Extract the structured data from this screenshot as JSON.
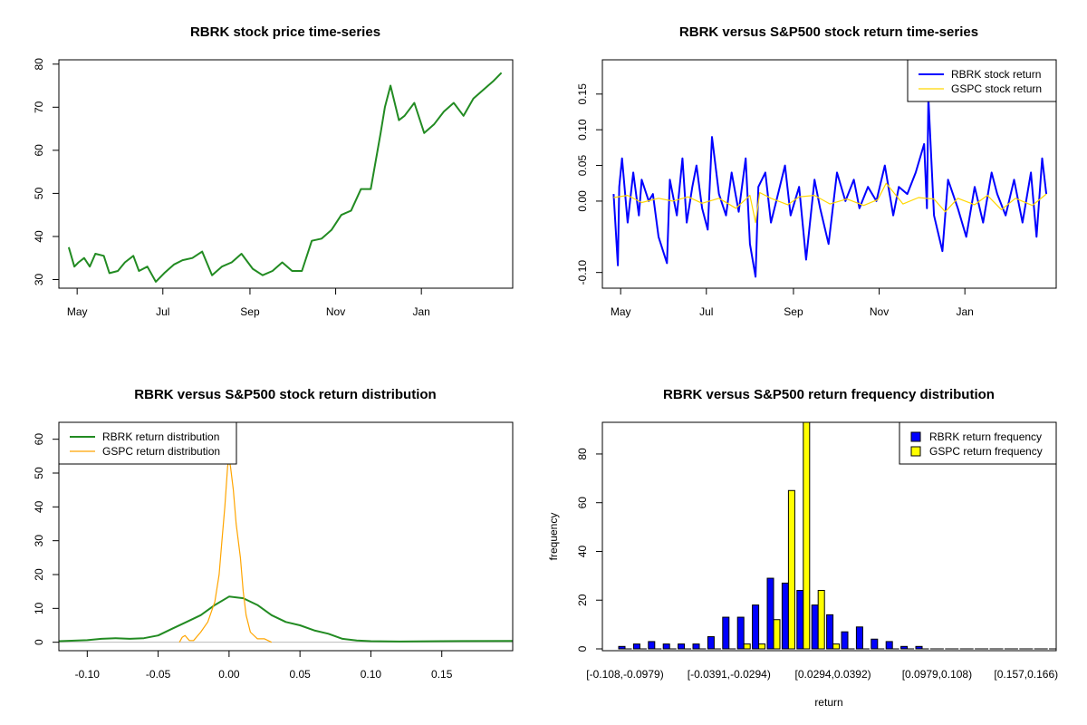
{
  "chart_data": [
    {
      "id": "p1",
      "type": "line",
      "title": "RBRK stock price time-series",
      "xlabel": "",
      "ylabel": "",
      "x_ticks": [
        "May",
        "Jul",
        "Sep",
        "Nov",
        "Jan"
      ],
      "x_tick_dates": [
        "2024-05-01",
        "2024-07-01",
        "2024-09-01",
        "2024-11-01",
        "2025-01-01"
      ],
      "xlim": [
        "2024-04-18",
        "2025-03-07"
      ],
      "ylim": [
        28,
        81
      ],
      "y_ticks": [
        30,
        40,
        50,
        60,
        70,
        80
      ],
      "grid": false,
      "series": [
        {
          "color": "#228B22",
          "x": [
            "2024-04-25",
            "2024-04-29",
            "2024-05-02",
            "2024-05-06",
            "2024-05-10",
            "2024-05-14",
            "2024-05-20",
            "2024-05-24",
            "2024-05-30",
            "2024-06-04",
            "2024-06-10",
            "2024-06-14",
            "2024-06-20",
            "2024-06-26",
            "2024-07-02",
            "2024-07-09",
            "2024-07-15",
            "2024-07-22",
            "2024-07-29",
            "2024-08-05",
            "2024-08-12",
            "2024-08-19",
            "2024-08-26",
            "2024-09-03",
            "2024-09-10",
            "2024-09-17",
            "2024-09-24",
            "2024-10-01",
            "2024-10-08",
            "2024-10-15",
            "2024-10-22",
            "2024-10-29",
            "2024-11-05",
            "2024-11-12",
            "2024-11-19",
            "2024-11-26",
            "2024-12-03",
            "2024-12-06",
            "2024-12-10",
            "2024-12-16",
            "2024-12-20",
            "2024-12-27",
            "2025-01-03",
            "2025-01-10",
            "2025-01-17",
            "2025-01-24",
            "2025-01-31",
            "2025-02-07",
            "2025-02-14",
            "2025-02-21",
            "2025-02-27"
          ],
          "y": [
            37.5,
            33,
            34,
            35,
            33,
            36,
            35.5,
            31.5,
            32,
            34,
            35.5,
            32,
            33,
            29.5,
            31.5,
            33.5,
            34.5,
            35,
            36.5,
            31,
            33,
            34,
            36,
            32.5,
            31,
            32,
            34,
            32,
            32,
            39,
            39.5,
            41.5,
            45,
            46,
            51,
            51,
            64,
            70,
            75,
            67,
            68,
            71,
            64,
            66,
            69,
            71,
            68,
            72,
            74,
            76,
            78
          ]
        }
      ]
    },
    {
      "id": "p2",
      "type": "line",
      "title": "RBRK versus S&P500 stock return time-series",
      "xlabel": "",
      "ylabel": "",
      "x_ticks": [
        "May",
        "Jul",
        "Sep",
        "Nov",
        "Jan"
      ],
      "x_tick_dates": [
        "2024-05-01",
        "2024-07-01",
        "2024-09-01",
        "2024-11-01",
        "2025-01-01"
      ],
      "xlim": [
        "2024-04-18",
        "2025-03-07"
      ],
      "ylim": [
        -0.122,
        0.198
      ],
      "y_ticks": [
        -0.1,
        0.0,
        0.05,
        0.1,
        0.15
      ],
      "y_tick_labels": [
        "-0.10",
        "0.00",
        "0.05",
        "0.10",
        "0.15"
      ],
      "grid": false,
      "legend": "top-right",
      "series": [
        {
          "name": "RBRK stock return",
          "color": "#0000FF",
          "x": [
            "2024-04-26",
            "2024-04-29",
            "2024-04-30",
            "2024-05-02",
            "2024-05-06",
            "2024-05-10",
            "2024-05-14",
            "2024-05-16",
            "2024-05-21",
            "2024-05-24",
            "2024-05-28",
            "2024-06-03",
            "2024-06-05",
            "2024-06-10",
            "2024-06-14",
            "2024-06-17",
            "2024-06-21",
            "2024-06-24",
            "2024-06-28",
            "2024-07-02",
            "2024-07-05",
            "2024-07-10",
            "2024-07-15",
            "2024-07-19",
            "2024-07-24",
            "2024-07-29",
            "2024-08-01",
            "2024-08-05",
            "2024-08-07",
            "2024-08-12",
            "2024-08-16",
            "2024-08-21",
            "2024-08-26",
            "2024-08-30",
            "2024-09-05",
            "2024-09-10",
            "2024-09-16",
            "2024-09-20",
            "2024-09-26",
            "2024-10-02",
            "2024-10-08",
            "2024-10-14",
            "2024-10-18",
            "2024-10-24",
            "2024-10-30",
            "2024-11-05",
            "2024-11-11",
            "2024-11-15",
            "2024-11-21",
            "2024-11-27",
            "2024-12-03",
            "2024-12-05",
            "2024-12-06",
            "2024-12-10",
            "2024-12-16",
            "2024-12-20",
            "2024-12-27",
            "2025-01-02",
            "2025-01-08",
            "2025-01-14",
            "2025-01-20",
            "2025-01-24",
            "2025-01-30",
            "2025-02-05",
            "2025-02-11",
            "2025-02-17",
            "2025-02-21",
            "2025-02-25",
            "2025-02-28"
          ],
          "y": [
            0.01,
            -0.09,
            0.02,
            0.06,
            -0.03,
            0.04,
            -0.02,
            0.03,
            0.0,
            0.01,
            -0.05,
            -0.087,
            0.03,
            -0.02,
            0.06,
            -0.03,
            0.02,
            0.05,
            -0.01,
            -0.04,
            0.09,
            0.01,
            -0.02,
            0.04,
            -0.015,
            0.06,
            -0.06,
            -0.106,
            0.02,
            0.04,
            -0.03,
            0.01,
            0.05,
            -0.02,
            0.02,
            -0.082,
            0.03,
            -0.01,
            -0.06,
            0.04,
            0.0,
            0.03,
            -0.01,
            0.02,
            0.0,
            0.05,
            -0.02,
            0.02,
            0.01,
            0.04,
            0.08,
            -0.01,
            0.145,
            -0.02,
            -0.07,
            0.03,
            -0.01,
            -0.05,
            0.02,
            -0.03,
            0.04,
            0.01,
            -0.02,
            0.03,
            -0.03,
            0.04,
            -0.05,
            0.06,
            0.01
          ]
        },
        {
          "name": "GSPC stock return",
          "color": "#FFD700",
          "x": [
            "2024-04-26",
            "2024-05-06",
            "2024-05-16",
            "2024-05-28",
            "2024-06-07",
            "2024-06-18",
            "2024-06-28",
            "2024-07-10",
            "2024-07-22",
            "2024-08-01",
            "2024-08-05",
            "2024-08-08",
            "2024-08-16",
            "2024-08-28",
            "2024-09-05",
            "2024-09-16",
            "2024-09-27",
            "2024-10-09",
            "2024-10-21",
            "2024-10-31",
            "2024-11-06",
            "2024-11-18",
            "2024-11-29",
            "2024-12-10",
            "2024-12-18",
            "2024-12-27",
            "2025-01-08",
            "2025-01-17",
            "2025-01-27",
            "2025-02-06",
            "2025-02-18",
            "2025-02-28"
          ],
          "y": [
            0.005,
            0.008,
            -0.002,
            0.004,
            0.0,
            0.006,
            -0.003,
            0.004,
            -0.01,
            0.008,
            -0.03,
            0.012,
            0.004,
            -0.005,
            0.006,
            0.008,
            -0.004,
            0.003,
            -0.006,
            0.002,
            0.025,
            -0.004,
            0.005,
            0.003,
            -0.015,
            0.004,
            -0.005,
            0.008,
            -0.012,
            0.004,
            -0.006,
            0.01
          ]
        }
      ]
    },
    {
      "id": "p3",
      "type": "line",
      "title": "RBRK versus S&P500 stock return distribution",
      "xlabel": "",
      "ylabel": "",
      "xlim": [
        -0.12,
        0.2
      ],
      "x_ticks": [
        -0.1,
        -0.05,
        0.0,
        0.05,
        0.1,
        0.15
      ],
      "x_tick_labels": [
        "-0.10",
        "-0.05",
        "0.00",
        "0.05",
        "0.10",
        "0.15"
      ],
      "ylim": [
        -2.5,
        65
      ],
      "y_ticks": [
        0,
        10,
        20,
        30,
        40,
        50,
        60
      ],
      "grid": false,
      "legend": "top-left",
      "series": [
        {
          "name": "RBRK return distribution",
          "color": "#228B22",
          "x": [
            -0.12,
            -0.1,
            -0.09,
            -0.08,
            -0.07,
            -0.06,
            -0.05,
            -0.04,
            -0.03,
            -0.02,
            -0.01,
            0.0,
            0.01,
            0.02,
            0.03,
            0.04,
            0.05,
            0.06,
            0.07,
            0.08,
            0.09,
            0.1,
            0.12,
            0.15,
            0.2
          ],
          "y": [
            0.3,
            0.6,
            1.0,
            1.2,
            1.0,
            1.2,
            2.0,
            4.0,
            6.0,
            8.0,
            11.0,
            13.5,
            13.0,
            11.0,
            8.0,
            6.0,
            5.0,
            3.5,
            2.5,
            1.0,
            0.5,
            0.3,
            0.2,
            0.3,
            0.4
          ]
        },
        {
          "name": "GSPC return distribution",
          "color": "#FFA500",
          "x": [
            -0.035,
            -0.033,
            -0.031,
            -0.028,
            -0.025,
            -0.02,
            -0.015,
            -0.01,
            -0.007,
            -0.005,
            -0.003,
            -0.001,
            0.0,
            0.001,
            0.003,
            0.005,
            0.008,
            0.01,
            0.012,
            0.015,
            0.02,
            0.025,
            0.03
          ],
          "y": [
            0.0,
            1.5,
            2.0,
            0.5,
            0.5,
            3.0,
            6.0,
            12.0,
            20.0,
            30.0,
            40.0,
            52.0,
            54.0,
            52.0,
            45.0,
            35.0,
            25.0,
            15.0,
            8.0,
            3.0,
            1.0,
            1.0,
            0.0
          ]
        }
      ]
    },
    {
      "id": "p4",
      "type": "bar",
      "title": "RBRK versus S&P500 return frequency distribution",
      "xlabel": "return",
      "ylabel": "frequency",
      "ylim": [
        0,
        93
      ],
      "y_ticks": [
        0,
        20,
        40,
        60,
        80
      ],
      "grid": false,
      "legend": "top-right",
      "category_tick_labels": [
        "[-0.108,-0.0979)",
        "[-0.0391,-0.0294)",
        "[0.0294,0.0392)",
        "[0.0979,0.108)",
        "[0.157,0.166)"
      ],
      "category_tick_index": [
        0,
        7,
        14,
        21,
        27
      ],
      "series": [
        {
          "name": "RBRK return frequency",
          "color": "#0000FF",
          "values": [
            1,
            2,
            3,
            2,
            2,
            2,
            5,
            13,
            13,
            18,
            29,
            27,
            24,
            18,
            14,
            7,
            9,
            4,
            3,
            1,
            1,
            0,
            0,
            0,
            0,
            0,
            0,
            0,
            0,
            0
          ]
        },
        {
          "name": "GSPC return frequency",
          "color": "#FFFF00",
          "values": [
            0,
            0,
            0,
            0,
            0,
            0,
            0,
            0,
            2,
            2,
            12,
            65,
            93,
            24,
            2,
            0,
            0,
            0,
            0,
            0,
            0,
            0,
            0,
            0,
            0,
            0,
            0,
            0,
            0,
            0
          ]
        }
      ]
    }
  ]
}
